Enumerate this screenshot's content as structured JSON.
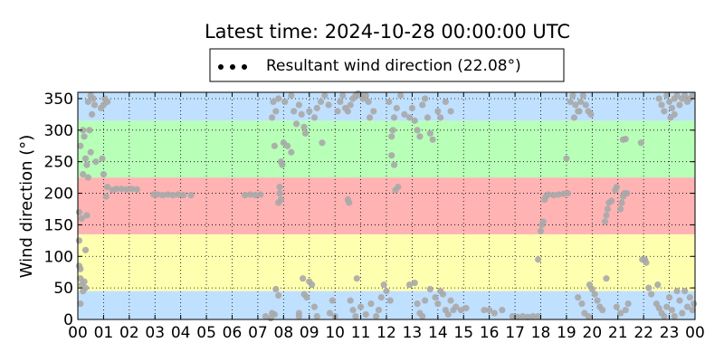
{
  "chart_data": {
    "type": "scatter",
    "title": "Latest time: 2024-10-28 00:00:00 UTC",
    "xlabel": "",
    "ylabel": "Wind direction (°)",
    "xlim": [
      0,
      24
    ],
    "ylim": [
      0,
      360
    ],
    "x_unit": "hour of day (UTC)",
    "x_tick_labels": [
      "00",
      "01",
      "02",
      "03",
      "04",
      "05",
      "06",
      "07",
      "08",
      "09",
      "10",
      "11",
      "12",
      "13",
      "14",
      "15",
      "16",
      "17",
      "18",
      "19",
      "20",
      "21",
      "22",
      "23",
      "00"
    ],
    "y_ticks": [
      0,
      50,
      100,
      150,
      200,
      250,
      300,
      350
    ],
    "grid": true,
    "grid_style": "dotted",
    "legend": {
      "placement": "top-center",
      "entries": [
        "Resultant wind direction (22.08°)"
      ]
    },
    "sector_bands": [
      {
        "from": 0,
        "to": 45,
        "color": "#c0e0ff"
      },
      {
        "from": 45,
        "to": 135,
        "color": "#ffffb0"
      },
      {
        "from": 135,
        "to": 225,
        "color": "#ffb3b3"
      },
      {
        "from": 225,
        "to": 315,
        "color": "#b8ffb8"
      },
      {
        "from": 315,
        "to": 360,
        "color": "#c0e0ff"
      }
    ],
    "marker_colors": [
      "#808080",
      "#999999",
      "#6e6e6e",
      "#a8a8a8",
      "#595959",
      "#8c8c8c",
      "#1a1a1a"
    ],
    "series": [
      {
        "name": "Resultant wind direction (22.08°)",
        "points": [
          [
            0.05,
            125
          ],
          [
            0.05,
            85
          ],
          [
            0.1,
            80
          ],
          [
            0.1,
            65
          ],
          [
            0.15,
            55
          ],
          [
            0.2,
            45
          ],
          [
            0.25,
            60
          ],
          [
            0.3,
            50
          ],
          [
            0.1,
            25
          ],
          [
            0.2,
            230
          ],
          [
            0.05,
            170
          ],
          [
            0.15,
            160
          ],
          [
            0.35,
            165
          ],
          [
            0.4,
            225
          ],
          [
            0.1,
            275
          ],
          [
            0.3,
            255
          ],
          [
            0.35,
            245
          ],
          [
            0.2,
            300
          ],
          [
            0.45,
            300
          ],
          [
            0.5,
            265
          ],
          [
            0.55,
            325
          ],
          [
            0.4,
            345
          ],
          [
            0.5,
            355
          ],
          [
            0.6,
            350
          ],
          [
            0.65,
            340
          ],
          [
            0.7,
            250
          ],
          [
            0.3,
            110
          ],
          [
            0.25,
            290
          ],
          [
            0.9,
            335
          ],
          [
            1.0,
            340
          ],
          [
            1.05,
            350
          ],
          [
            1.15,
            345
          ],
          [
            0.95,
            255
          ],
          [
            1.0,
            230
          ],
          [
            1.1,
            195
          ],
          [
            1.15,
            210
          ],
          [
            1.35,
            205
          ],
          [
            1.5,
            207
          ],
          [
            1.7,
            207
          ],
          [
            1.9,
            206
          ],
          [
            2.1,
            207
          ],
          [
            2.3,
            206
          ],
          [
            2.95,
            198
          ],
          [
            3.1,
            198
          ],
          [
            3.3,
            197
          ],
          [
            3.5,
            198
          ],
          [
            3.7,
            197
          ],
          [
            3.9,
            198
          ],
          [
            4.1,
            197
          ],
          [
            4.4,
            197
          ],
          [
            6.5,
            197
          ],
          [
            6.7,
            198
          ],
          [
            6.9,
            197
          ],
          [
            7.1,
            198
          ],
          [
            7.3,
            5
          ],
          [
            7.5,
            2
          ],
          [
            7.55,
            10
          ],
          [
            7.65,
            8
          ],
          [
            7.7,
            48
          ],
          [
            7.8,
            38
          ],
          [
            7.8,
            185
          ],
          [
            7.85,
            200
          ],
          [
            7.9,
            190
          ],
          [
            7.85,
            210
          ],
          [
            7.65,
            275
          ],
          [
            7.9,
            250
          ],
          [
            7.95,
            245
          ],
          [
            8.0,
            280
          ],
          [
            8.15,
            275
          ],
          [
            8.3,
            265
          ],
          [
            7.55,
            320
          ],
          [
            7.7,
            330
          ],
          [
            7.6,
            345
          ],
          [
            7.8,
            350
          ],
          [
            8.05,
            345
          ],
          [
            8.3,
            355
          ],
          [
            8.4,
            330
          ],
          [
            8.5,
            310
          ],
          [
            8.6,
            340
          ],
          [
            8.7,
            325
          ],
          [
            8.8,
            305
          ],
          [
            8.85,
            295
          ],
          [
            9.0,
            330
          ],
          [
            9.2,
            320
          ],
          [
            9.3,
            335
          ],
          [
            8.6,
            10
          ],
          [
            8.8,
            40
          ],
          [
            8.9,
            35
          ],
          [
            9.0,
            60
          ],
          [
            9.1,
            55
          ],
          [
            9.2,
            20
          ],
          [
            9.3,
            5
          ],
          [
            8.6,
            5
          ],
          [
            8.75,
            65
          ],
          [
            9.45,
            345
          ],
          [
            9.6,
            355
          ],
          [
            9.75,
            340
          ],
          [
            9.5,
            280
          ],
          [
            9.8,
            10
          ],
          [
            9.9,
            30
          ],
          [
            10.0,
            5
          ],
          [
            10.1,
            330
          ],
          [
            10.2,
            345
          ],
          [
            10.3,
            355
          ],
          [
            10.4,
            335
          ],
          [
            10.5,
            330
          ],
          [
            10.6,
            340
          ],
          [
            10.7,
            350
          ],
          [
            10.8,
            355
          ],
          [
            10.9,
            358
          ],
          [
            11.0,
            355
          ],
          [
            11.1,
            350
          ],
          [
            11.2,
            355
          ],
          [
            11.3,
            345
          ],
          [
            11.35,
            320
          ],
          [
            11.5,
            330
          ],
          [
            10.5,
            190
          ],
          [
            10.55,
            185
          ],
          [
            10.6,
            30
          ],
          [
            10.7,
            15
          ],
          [
            10.8,
            5
          ],
          [
            10.85,
            65
          ],
          [
            11.0,
            20
          ],
          [
            11.2,
            8
          ],
          [
            11.4,
            25
          ],
          [
            11.6,
            5
          ],
          [
            11.7,
            15
          ],
          [
            11.8,
            35
          ],
          [
            11.9,
            55
          ],
          [
            12.0,
            45
          ],
          [
            12.15,
            30
          ],
          [
            12.2,
            260
          ],
          [
            12.3,
            245
          ],
          [
            12.35,
            205
          ],
          [
            12.45,
            210
          ],
          [
            12.2,
            290
          ],
          [
            12.25,
            300
          ],
          [
            12.3,
            320
          ],
          [
            12.4,
            335
          ],
          [
            12.1,
            345
          ],
          [
            12.55,
            355
          ],
          [
            12.7,
            325
          ],
          [
            12.9,
            320
          ],
          [
            13.0,
            335
          ],
          [
            13.1,
            315
          ],
          [
            13.2,
            300
          ],
          [
            13.3,
            290
          ],
          [
            13.4,
            340
          ],
          [
            13.5,
            350
          ],
          [
            13.6,
            320
          ],
          [
            13.7,
            295
          ],
          [
            13.8,
            285
          ],
          [
            14.0,
            330
          ],
          [
            14.1,
            320
          ],
          [
            14.3,
            345
          ],
          [
            14.5,
            330
          ],
          [
            12.9,
            55
          ],
          [
            13.1,
            58
          ],
          [
            13.2,
            25
          ],
          [
            13.3,
            10
          ],
          [
            13.4,
            5
          ],
          [
            13.5,
            30
          ],
          [
            13.7,
            48
          ],
          [
            13.9,
            35
          ],
          [
            14.0,
            25
          ],
          [
            14.1,
            45
          ],
          [
            14.2,
            40
          ],
          [
            14.3,
            15
          ],
          [
            14.4,
            8
          ],
          [
            14.5,
            30
          ],
          [
            14.6,
            15
          ],
          [
            14.7,
            20
          ],
          [
            14.9,
            15
          ],
          [
            15.1,
            18
          ],
          [
            15.8,
            15
          ],
          [
            16.0,
            15
          ],
          [
            16.2,
            10
          ],
          [
            16.5,
            15
          ],
          [
            16.9,
            5
          ],
          [
            17.1,
            4
          ],
          [
            17.3,
            5
          ],
          [
            17.5,
            4
          ],
          [
            17.7,
            5
          ],
          [
            17.9,
            5
          ],
          [
            17.9,
            95
          ],
          [
            18.0,
            140
          ],
          [
            18.05,
            150
          ],
          [
            18.1,
            155
          ],
          [
            18.15,
            190
          ],
          [
            18.2,
            195
          ],
          [
            18.3,
            198
          ],
          [
            18.5,
            197
          ],
          [
            18.7,
            198
          ],
          [
            18.9,
            199
          ],
          [
            19.05,
            200
          ],
          [
            19.0,
            255
          ],
          [
            19.15,
            345
          ],
          [
            19.25,
            355
          ],
          [
            19.35,
            340
          ],
          [
            19.45,
            330
          ],
          [
            19.55,
            345
          ],
          [
            19.65,
            355
          ],
          [
            19.75,
            340
          ],
          [
            19.85,
            330
          ],
          [
            19.95,
            325
          ],
          [
            19.3,
            320
          ],
          [
            19.5,
            330
          ],
          [
            19.45,
            35
          ],
          [
            19.6,
            25
          ],
          [
            19.7,
            10
          ],
          [
            19.85,
            5
          ],
          [
            19.9,
            55
          ],
          [
            20.0,
            48
          ],
          [
            20.1,
            40
          ],
          [
            20.2,
            30
          ],
          [
            20.3,
            20
          ],
          [
            20.4,
            15
          ],
          [
            20.55,
            65
          ],
          [
            20.5,
            155
          ],
          [
            20.55,
            165
          ],
          [
            20.6,
            175
          ],
          [
            20.65,
            185
          ],
          [
            20.75,
            188
          ],
          [
            20.9,
            205
          ],
          [
            20.95,
            210
          ],
          [
            21.1,
            175
          ],
          [
            21.15,
            185
          ],
          [
            21.2,
            195
          ],
          [
            21.25,
            200
          ],
          [
            21.35,
            200
          ],
          [
            20.95,
            20
          ],
          [
            21.1,
            10
          ],
          [
            21.3,
            15
          ],
          [
            21.4,
            25
          ],
          [
            21.2,
            285
          ],
          [
            21.3,
            286
          ],
          [
            21.9,
            280
          ],
          [
            21.95,
            95
          ],
          [
            22.05,
            95
          ],
          [
            22.1,
            90
          ],
          [
            22.2,
            50
          ],
          [
            22.3,
            40
          ],
          [
            22.55,
            55
          ],
          [
            22.5,
            25
          ],
          [
            22.6,
            18
          ],
          [
            22.7,
            10
          ],
          [
            22.8,
            5
          ],
          [
            22.9,
            20
          ],
          [
            23.0,
            35
          ],
          [
            23.1,
            15
          ],
          [
            23.2,
            5
          ],
          [
            23.3,
            45
          ],
          [
            23.4,
            30
          ],
          [
            23.5,
            10
          ],
          [
            23.6,
            45
          ],
          [
            23.7,
            20
          ],
          [
            23.8,
            35
          ],
          [
            23.9,
            15
          ],
          [
            23.95,
            25
          ],
          [
            22.6,
            350
          ],
          [
            22.7,
            340
          ],
          [
            22.8,
            330
          ],
          [
            22.9,
            355
          ],
          [
            23.0,
            345
          ],
          [
            23.1,
            335
          ],
          [
            23.2,
            350
          ],
          [
            23.3,
            355
          ],
          [
            23.4,
            340
          ],
          [
            23.5,
            350
          ],
          [
            23.6,
            355
          ],
          [
            23.7,
            345
          ],
          [
            23.8,
            350
          ],
          [
            23.9,
            355
          ],
          [
            23.05,
            320
          ],
          [
            23.2,
            325
          ]
        ]
      }
    ]
  }
}
